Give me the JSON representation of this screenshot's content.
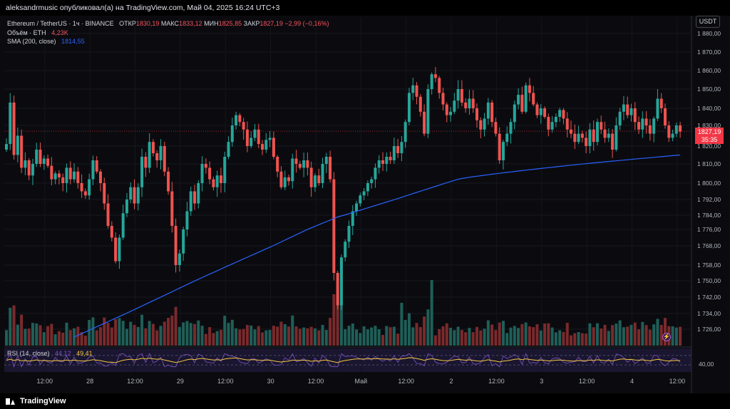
{
  "header": {
    "text": "aleksandrmusic опубликовал(а) на TradingView.com, Май 04, 2025 16:24 UTC+3"
  },
  "legend": {
    "symbol": "Ethereum / TetherUS · 1ч · BINANCE",
    "open_label": "ОТКР",
    "open_value": "1830,19",
    "high_label": "МАКС",
    "high_value": "1833,12",
    "low_label": "МИН",
    "low_value": "1825,85",
    "close_label": "ЗАКР",
    "close_value": "1827,19",
    "change": "−2,99 (−0,16%)",
    "volume_label": "Объём · ETH",
    "volume_value": "4,23K",
    "sma_label": "SMA (200, close)",
    "sma_value": "1814,55",
    "rsi_label": "RSI (14, close)",
    "rsi_value": "44,12",
    "rsi_ma_value": "49,41"
  },
  "price_scale": {
    "currency": "USDT",
    "current_price": "1827,19",
    "countdown": "35:35"
  },
  "footer": {
    "brand": "TradingView"
  },
  "colors": {
    "up": "#26a69a",
    "down": "#ef5350",
    "sma": "#2962ff",
    "rsi": "#7e57c2",
    "rsi_ma": "#f5c842"
  },
  "chart_data": {
    "type": "candlestick",
    "price_axis": {
      "ticks": [
        1726,
        1734,
        1742,
        1750,
        1758,
        1768,
        1776,
        1784,
        1792,
        1800,
        1810,
        1820,
        1830,
        1840,
        1850,
        1860,
        1870,
        1880
      ],
      "tick_labels": [
        "1 726,00",
        "1 734,00",
        "1 742,00",
        "1 750,00",
        "1 758,00",
        "1 768,00",
        "1 776,00",
        "1 784,00",
        "1 792,00",
        "1 800,00",
        "1 810,00",
        "1 820,00",
        "1 830,00",
        "1 840,00",
        "1 850,00",
        "1 860,00",
        "1 870,00",
        "1 880,00"
      ]
    },
    "time_axis": {
      "labels": [
        {
          "bar": 10,
          "text": "12:00"
        },
        {
          "bar": 22,
          "text": "28"
        },
        {
          "bar": 34,
          "text": "12:00"
        },
        {
          "bar": 46,
          "text": "29"
        },
        {
          "bar": 58,
          "text": "12:00"
        },
        {
          "bar": 70,
          "text": "30"
        },
        {
          "bar": 82,
          "text": "12:00"
        },
        {
          "bar": 94,
          "text": "Май"
        },
        {
          "bar": 106,
          "text": "12:00"
        },
        {
          "bar": 118,
          "text": "2"
        },
        {
          "bar": 130,
          "text": "12:00"
        },
        {
          "bar": 142,
          "text": "3"
        },
        {
          "bar": 154,
          "text": "12:00"
        },
        {
          "bar": 166,
          "text": "4"
        },
        {
          "bar": 178,
          "text": "12:00"
        }
      ]
    },
    "closes": [
      1821,
      1843,
      1815,
      1825,
      1808,
      1812,
      1804,
      1810,
      1818,
      1810,
      1813,
      1809,
      1802,
      1805,
      1803,
      1800,
      1808,
      1802,
      1806,
      1800,
      1796,
      1794,
      1802,
      1812,
      1806,
      1800,
      1790,
      1778,
      1772,
      1760,
      1772,
      1785,
      1792,
      1798,
      1790,
      1798,
      1814,
      1808,
      1822,
      1816,
      1812,
      1820,
      1806,
      1796,
      1778,
      1758,
      1764,
      1776,
      1786,
      1796,
      1790,
      1800,
      1810,
      1808,
      1802,
      1798,
      1804,
      1800,
      1814,
      1822,
      1830,
      1836,
      1832,
      1828,
      1820,
      1824,
      1828,
      1821,
      1818,
      1823,
      1824,
      1814,
      1806,
      1798,
      1803,
      1801,
      1813,
      1810,
      1808,
      1812,
      1808,
      1798,
      1804,
      1800,
      1810,
      1814,
      1802,
      1754,
      1738,
      1762,
      1770,
      1778,
      1786,
      1790,
      1794,
      1796,
      1800,
      1802,
      1808,
      1812,
      1810,
      1814,
      1812,
      1820,
      1816,
      1822,
      1832,
      1848,
      1852,
      1846,
      1838,
      1826,
      1850,
      1858,
      1856,
      1848,
      1842,
      1836,
      1838,
      1844,
      1850,
      1843,
      1840,
      1845,
      1840,
      1833,
      1828,
      1834,
      1843,
      1832,
      1826,
      1812,
      1822,
      1826,
      1832,
      1842,
      1847,
      1838,
      1852,
      1848,
      1842,
      1836,
      1840,
      1835,
      1828,
      1832,
      1835,
      1839,
      1834,
      1828,
      1826,
      1822,
      1826,
      1824,
      1820,
      1828,
      1822,
      1832,
      1828,
      1824,
      1826,
      1818,
      1830,
      1838,
      1842,
      1836,
      1840,
      1832,
      1828,
      1834,
      1830,
      1826,
      1834,
      1845,
      1840,
      1830,
      1824,
      1826,
      1830,
      1827
    ],
    "sma_200": {
      "x_start_bar": 18,
      "start": 1722,
      "inflection": [
        {
          "bar": 88,
          "value": 1783
        },
        {
          "bar": 120,
          "value": 1802
        }
      ],
      "end": 1815
    },
    "volume_axis_max": 95,
    "rsi": {
      "axis_ticks": [
        40
      ],
      "tick_labels": [
        "40,00"
      ],
      "levels": [
        30,
        70
      ],
      "range": [
        0,
        100
      ]
    },
    "current_price": 1827.19
  }
}
